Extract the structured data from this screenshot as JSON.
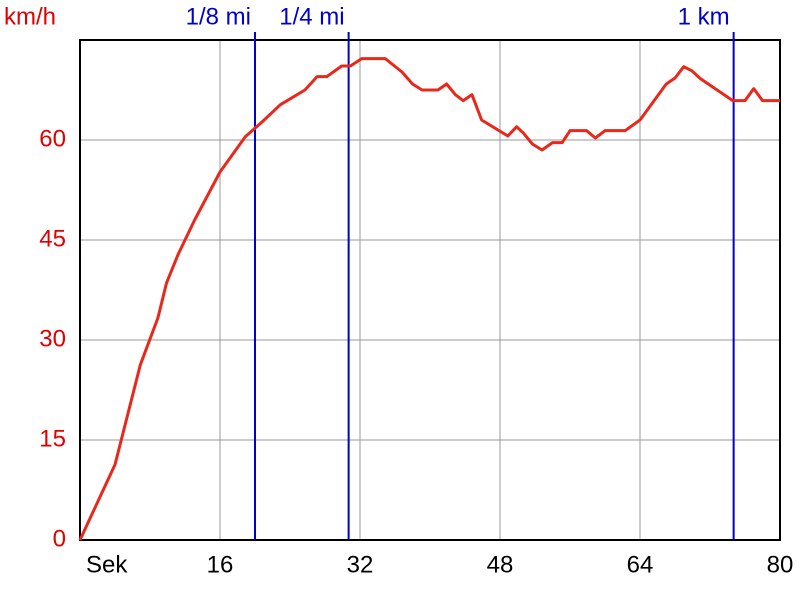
{
  "chart_data": {
    "type": "line",
    "y_label": "km/h",
    "x": [
      0,
      4,
      6.9,
      8.9,
      9.9,
      11.2,
      13.1,
      16,
      18.9,
      20.8,
      22.9,
      25.7,
      27.1,
      28.2,
      29.9,
      30.9,
      32.2,
      34.9,
      36.8,
      38,
      39.1,
      40.9,
      41.9,
      42.9,
      43.8,
      44.8,
      45.9,
      48.9,
      49.9,
      50.7,
      51.7,
      52.8,
      54,
      55.1,
      56,
      57.9,
      58.9,
      60,
      62.3,
      64,
      67,
      68,
      69,
      69.9,
      70.9,
      74.6,
      76,
      77,
      78,
      80
    ],
    "series": [
      {
        "color": "#e8281b",
        "values": [
          0,
          11.3,
          26.3,
          33.3,
          38.6,
          42.8,
          48,
          55.2,
          60.5,
          62.7,
          65.3,
          67.5,
          69.5,
          69.5,
          71.1,
          71.1,
          72.2,
          72.2,
          70.2,
          68.4,
          67.5,
          67.5,
          68.4,
          66.8,
          65.9,
          66.8,
          63,
          60.6,
          62,
          61,
          59.4,
          58.5,
          59.6,
          59.6,
          61.4,
          61.4,
          60.3,
          61.4,
          61.4,
          63,
          68.4,
          69.3,
          71,
          70.4,
          69.2,
          65.9,
          65.9,
          67.7,
          65.9,
          65.9
        ]
      }
    ],
    "xlim": [
      0,
      80
    ],
    "ylim": [
      0,
      75
    ],
    "xticks": [
      {
        "value": 0,
        "label": "Sek"
      },
      16,
      32,
      48,
      64,
      80
    ],
    "yticks": [
      0,
      15,
      30,
      45,
      60
    ],
    "grid": true,
    "markers": [
      {
        "label": "1/8 mi",
        "x": 20,
        "color": "#0000cc"
      },
      {
        "label": "1/4 mi",
        "x": 30.7,
        "color": "#0000cc"
      },
      {
        "label": "1 km",
        "x": 74.7,
        "color": "#0000cc"
      }
    ]
  }
}
